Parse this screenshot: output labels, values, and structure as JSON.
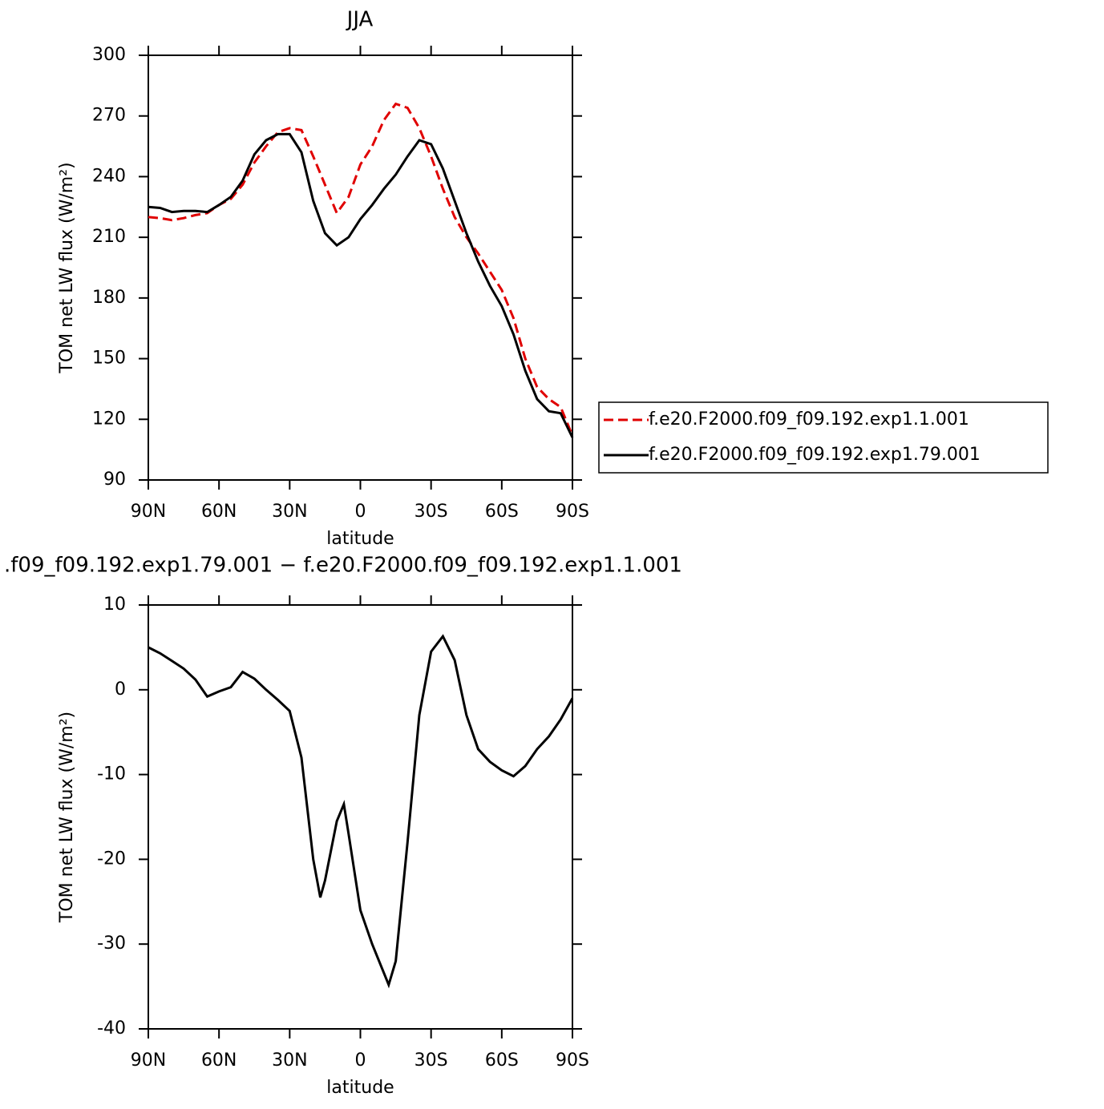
{
  "chart_data": [
    {
      "type": "line",
      "title": "JJA",
      "xlabel": "latitude",
      "ylabel": "TOM net LW flux (W/m²)",
      "x": [
        90,
        85,
        80,
        75,
        70,
        65,
        60,
        55,
        50,
        45,
        40,
        35,
        30,
        25,
        20,
        15,
        10,
        5,
        0,
        -5,
        -10,
        -15,
        -20,
        -25,
        -30,
        -35,
        -40,
        -45,
        -50,
        -55,
        -60,
        -65,
        -70,
        -75,
        -80,
        -85,
        -90
      ],
      "xlim": [
        90,
        -90
      ],
      "xticks": [
        {
          "value": 90,
          "label": "90N"
        },
        {
          "value": 60,
          "label": "60N"
        },
        {
          "value": 30,
          "label": "30N"
        },
        0,
        {
          "value": -30,
          "label": "30S"
        },
        {
          "value": -60,
          "label": "60S"
        },
        {
          "value": -90,
          "label": "90S"
        }
      ],
      "ylim": [
        90,
        300
      ],
      "yticks": [
        90,
        120,
        150,
        180,
        210,
        240,
        270,
        300
      ],
      "legend": "right",
      "series": [
        {
          "name": "f.e20.F2000.f09_f09.192.exp1.1.001",
          "color": "#e00000",
          "dash": "dashed",
          "values": [
            220,
            219.5,
            218.5,
            219.5,
            221,
            222,
            226,
            229,
            236,
            247,
            255,
            262,
            264,
            263,
            250,
            236,
            222,
            230,
            246,
            255,
            268,
            276,
            274,
            264,
            250,
            234,
            220,
            210,
            202,
            193,
            184,
            170,
            150,
            136,
            130,
            126,
            112
          ]
        },
        {
          "name": "f.e20.F2000.f09_f09.192.exp1.79.001",
          "color": "#000000",
          "dash": "solid",
          "values": [
            225,
            224.5,
            222.5,
            223,
            223,
            222.5,
            226,
            230,
            238,
            251,
            258,
            261,
            261,
            252,
            228,
            212,
            206,
            210,
            219,
            226,
            234,
            241,
            250,
            258,
            256,
            244,
            228,
            212,
            198,
            186,
            176,
            162,
            144,
            130,
            124,
            123,
            111
          ]
        }
      ]
    },
    {
      "type": "line",
      "title": ".f09_f09.192.exp1.79.001 − f.e20.F2000.f09_f09.192.exp1.1.001",
      "xlabel": "latitude",
      "ylabel": "TOM net LW flux (W/m²)",
      "x": [
        90,
        85,
        80,
        75,
        70,
        65,
        60,
        55,
        50,
        45,
        40,
        35,
        30,
        25,
        20,
        17,
        15,
        10,
        7,
        5,
        0,
        -5,
        -12,
        -15,
        -20,
        -25,
        -30,
        -35,
        -40,
        -45,
        -50,
        -55,
        -60,
        -65,
        -70,
        -75,
        -80,
        -85,
        -90
      ],
      "xlim": [
        90,
        -90
      ],
      "xticks": [
        {
          "value": 90,
          "label": "90N"
        },
        {
          "value": 60,
          "label": "60N"
        },
        {
          "value": 30,
          "label": "30N"
        },
        0,
        {
          "value": -30,
          "label": "30S"
        },
        {
          "value": -60,
          "label": "60S"
        },
        {
          "value": -90,
          "label": "90S"
        }
      ],
      "ylim": [
        -40,
        10
      ],
      "yticks": [
        -40,
        -30,
        -20,
        -10,
        0,
        10
      ],
      "series": [
        {
          "color": "#000000",
          "dash": "solid",
          "values": [
            5,
            4.3,
            3.4,
            2.5,
            1.2,
            -0.8,
            -0.2,
            0.3,
            2.1,
            1.3,
            0,
            -1.2,
            -2.5,
            -8,
            -20,
            -24.5,
            -22.5,
            -15.5,
            -13.5,
            -17,
            -26,
            -30,
            -34.8,
            -32,
            -18,
            -3,
            4.5,
            6.3,
            3.5,
            -3,
            -7,
            -8.5,
            -9.5,
            -10.2,
            -9,
            -7,
            -5.5,
            -3.5,
            -1
          ]
        }
      ]
    }
  ]
}
